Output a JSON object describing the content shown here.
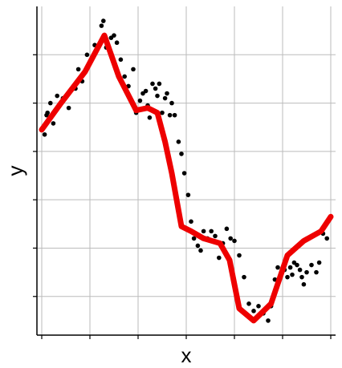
{
  "chart_data": {
    "type": "scatter",
    "title": "",
    "xlabel": "x",
    "ylabel": "y",
    "xlim": [
      -0.05,
      3.05
    ],
    "ylim": [
      0,
      6.8
    ],
    "grid": true,
    "x_ticks": [
      0,
      0.5,
      1.0,
      1.5,
      2.0,
      2.5,
      3.0
    ],
    "y_ticks": [
      0.8,
      1.8,
      2.8,
      3.8,
      4.8,
      5.8
    ],
    "tick_labels_visible": false,
    "legend": "none",
    "colors": {
      "points": "#000000",
      "fit_line": "#ee0000",
      "grid": "#bbbbbb",
      "axis": "#000000"
    },
    "series": [
      {
        "kind": "points",
        "x": [
          0.03,
          0.05,
          0.06,
          0.09,
          0.12,
          0.16,
          0.22,
          0.28,
          0.35,
          0.38,
          0.42,
          0.47,
          0.52,
          0.55,
          0.62,
          0.64,
          0.67,
          0.72,
          0.75,
          0.78,
          0.82,
          0.86,
          0.9,
          0.95,
          0.98,
          1.02,
          1.05,
          1.08,
          1.1,
          1.12,
          1.15,
          1.18,
          1.2,
          1.22,
          1.25,
          1.28,
          1.3,
          1.33,
          1.35,
          1.38,
          1.42,
          1.45,
          1.48,
          1.52,
          1.55,
          1.58,
          1.62,
          1.65,
          1.68,
          1.72,
          1.76,
          1.8,
          1.84,
          1.88,
          1.92,
          1.96,
          2.0,
          2.05,
          2.1,
          2.15,
          2.2,
          2.25,
          2.3,
          2.35,
          2.38,
          2.42,
          2.45,
          2.48,
          2.52,
          2.55,
          2.58,
          2.6,
          2.62,
          2.65,
          2.68,
          2.7,
          2.72,
          2.75,
          2.8,
          2.85,
          2.88,
          2.92,
          2.96
        ],
        "y": [
          4.15,
          4.55,
          4.6,
          4.8,
          4.38,
          4.95,
          4.9,
          4.7,
          5.1,
          5.5,
          5.25,
          5.8,
          5.7,
          6.0,
          6.4,
          6.5,
          5.95,
          6.15,
          6.2,
          6.05,
          5.7,
          5.35,
          5.15,
          5.5,
          4.6,
          4.85,
          5.0,
          5.05,
          4.75,
          4.5,
          5.2,
          5.1,
          4.95,
          5.2,
          4.6,
          4.9,
          5.0,
          4.55,
          4.8,
          4.55,
          4.0,
          3.75,
          3.35,
          2.9,
          2.35,
          2.0,
          1.85,
          1.75,
          2.15,
          2.0,
          2.15,
          2.05,
          1.6,
          1.9,
          2.2,
          2.0,
          1.95,
          1.65,
          1.2,
          0.65,
          0.5,
          0.6,
          0.45,
          0.3,
          0.6,
          1.15,
          1.4,
          1.2,
          1.35,
          1.2,
          1.4,
          1.25,
          1.5,
          1.45,
          1.35,
          1.2,
          1.05,
          1.3,
          1.45,
          1.3,
          1.5,
          2.1,
          2.0
        ]
      },
      {
        "kind": "line",
        "x": [
          0.0,
          0.2,
          0.45,
          0.65,
          0.8,
          0.98,
          1.1,
          1.2,
          1.28,
          1.35,
          1.45,
          1.55,
          1.68,
          1.85,
          1.95,
          2.05,
          2.2,
          2.38,
          2.55,
          2.72,
          2.9,
          3.0
        ],
        "y": [
          4.25,
          4.8,
          5.45,
          6.2,
          5.35,
          4.65,
          4.7,
          4.6,
          4.0,
          3.35,
          2.25,
          2.15,
          2.0,
          1.9,
          1.55,
          0.55,
          0.3,
          0.65,
          1.65,
          1.95,
          2.15,
          2.45
        ]
      }
    ]
  }
}
